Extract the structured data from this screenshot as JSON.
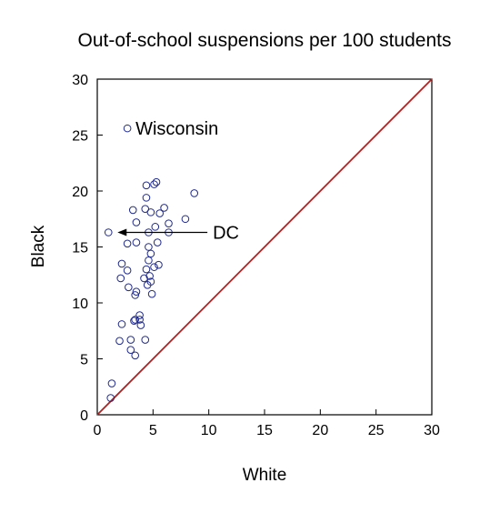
{
  "chart_data": {
    "type": "scatter",
    "title": "Out-of-school suspensions per 100 students",
    "xlabel": "White",
    "ylabel": "Black",
    "xlim": [
      0,
      30
    ],
    "ylim": [
      0,
      30
    ],
    "xticks": [
      "0",
      "5",
      "10",
      "15",
      "20",
      "25",
      "30"
    ],
    "yticks": [
      "0",
      "5",
      "10",
      "15",
      "20",
      "25",
      "30"
    ],
    "grid": false,
    "marker_color": "#1f2a8a",
    "reference_line": {
      "from": [
        0,
        0
      ],
      "to": [
        30,
        30
      ],
      "color": "#b22222"
    },
    "points": [
      [
        2.7,
        25.6
      ],
      [
        1.0,
        16.3
      ],
      [
        4.4,
        20.5
      ],
      [
        5.1,
        20.6
      ],
      [
        5.3,
        20.8
      ],
      [
        8.7,
        19.8
      ],
      [
        4.4,
        19.4
      ],
      [
        3.2,
        18.3
      ],
      [
        4.3,
        18.4
      ],
      [
        4.8,
        18.1
      ],
      [
        5.6,
        18.0
      ],
      [
        6.0,
        18.5
      ],
      [
        7.9,
        17.5
      ],
      [
        3.5,
        17.2
      ],
      [
        5.2,
        16.8
      ],
      [
        6.4,
        17.1
      ],
      [
        4.6,
        16.3
      ],
      [
        6.4,
        16.3
      ],
      [
        2.7,
        15.3
      ],
      [
        3.5,
        15.4
      ],
      [
        4.6,
        15.0
      ],
      [
        5.4,
        15.4
      ],
      [
        4.8,
        14.4
      ],
      [
        4.6,
        13.8
      ],
      [
        2.2,
        13.5
      ],
      [
        5.5,
        13.4
      ],
      [
        2.7,
        12.9
      ],
      [
        4.4,
        13.0
      ],
      [
        5.1,
        13.2
      ],
      [
        2.1,
        12.2
      ],
      [
        4.2,
        12.2
      ],
      [
        4.7,
        12.4
      ],
      [
        4.8,
        11.9
      ],
      [
        4.5,
        11.6
      ],
      [
        3.5,
        11.0
      ],
      [
        2.8,
        11.4
      ],
      [
        3.4,
        10.7
      ],
      [
        4.9,
        10.8
      ],
      [
        2.2,
        8.1
      ],
      [
        3.4,
        8.5
      ],
      [
        3.8,
        8.5
      ],
      [
        3.8,
        8.9
      ],
      [
        3.9,
        8.0
      ],
      [
        3.3,
        8.4
      ],
      [
        2.0,
        6.6
      ],
      [
        3.0,
        6.7
      ],
      [
        4.3,
        6.7
      ],
      [
        3.0,
        5.8
      ],
      [
        3.4,
        5.3
      ],
      [
        1.3,
        2.8
      ],
      [
        1.2,
        1.5
      ]
    ],
    "annotations": [
      {
        "label": "Wisconsin",
        "point": [
          2.7,
          25.6
        ],
        "arrow": false
      },
      {
        "label": "DC",
        "point": [
          1.0,
          16.3
        ],
        "arrow": true,
        "text_at": [
          10.2,
          16.3
        ]
      }
    ]
  }
}
